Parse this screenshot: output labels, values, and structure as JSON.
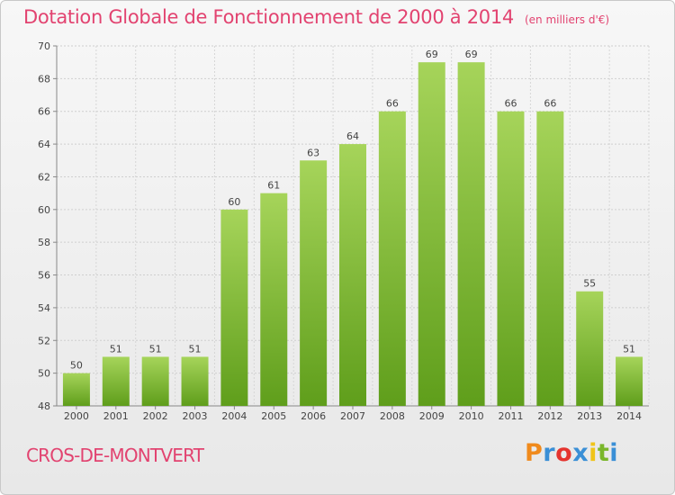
{
  "header": {
    "title": "Dotation Globale de Fonctionnement de 2000 à 2014",
    "unit": "(en milliers d'€)"
  },
  "footer": {
    "commune": "CROS-DE-MONTVERT",
    "brand": "Proxiti",
    "brand_colors": [
      "#f08a1c",
      "#3a8fd6",
      "#e5342e",
      "#3a8fd6",
      "#f0c419",
      "#7ab62b",
      "#3a8fd6"
    ]
  },
  "chart_data": {
    "type": "bar",
    "categories": [
      "2000",
      "2001",
      "2002",
      "2003",
      "2004",
      "2005",
      "2006",
      "2007",
      "2008",
      "2009",
      "2010",
      "2011",
      "2012",
      "2013",
      "2014"
    ],
    "values": [
      50,
      51,
      51,
      51,
      60,
      61,
      63,
      64,
      66,
      69,
      69,
      66,
      66,
      55,
      51
    ],
    "title": "Dotation Globale de Fonctionnement de 2000 à 2014",
    "xlabel": "",
    "ylabel": "",
    "ylim": [
      48,
      70
    ],
    "yticks": [
      48,
      50,
      52,
      54,
      56,
      58,
      60,
      62,
      64,
      66,
      68,
      70
    ],
    "grid": true,
    "bar_color_top": "#a6d45a",
    "bar_color_bottom": "#5f9e1b"
  }
}
